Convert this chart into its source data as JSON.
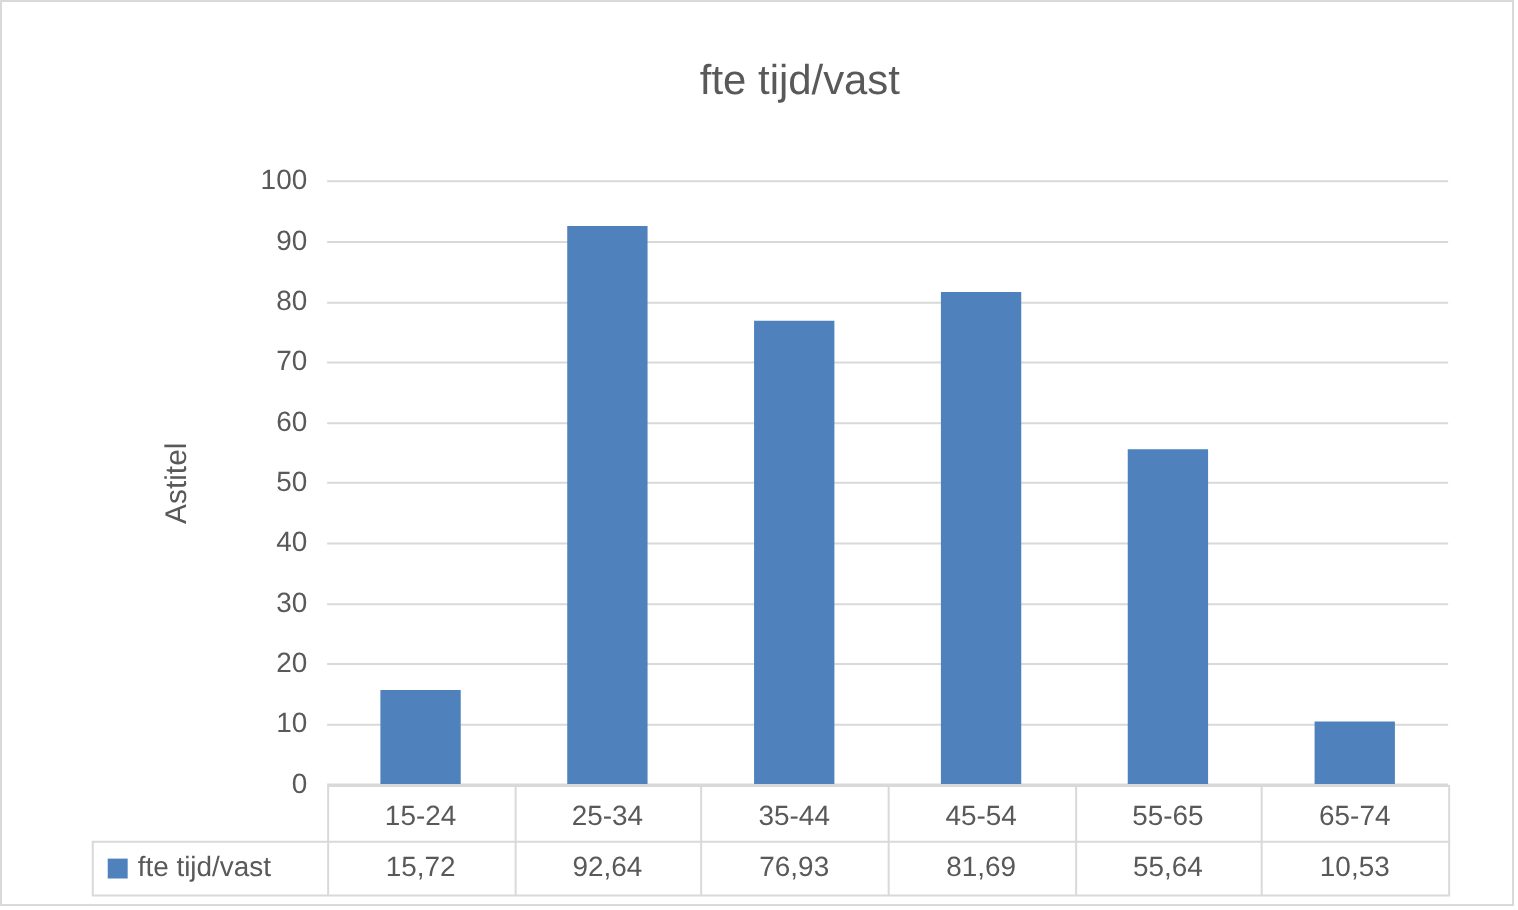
{
  "chart_data": {
    "type": "bar",
    "title": "fte tijd/vast",
    "ylabel": "Astitel",
    "categories": [
      "15-24",
      "25-34",
      "35-44",
      "45-54",
      "55-65",
      "65-74"
    ],
    "series": [
      {
        "name": "fte tijd/vast",
        "color": "#4f81bd",
        "values": [
          15.72,
          92.64,
          76.93,
          81.69,
          55.64,
          10.53
        ],
        "value_labels": [
          "15,72",
          "92,64",
          "76,93",
          "81,69",
          "55,64",
          "10,53"
        ]
      }
    ],
    "ylim": [
      0,
      100
    ],
    "yticks": [
      0,
      10,
      20,
      30,
      40,
      50,
      60,
      70,
      80,
      90,
      100
    ],
    "grid": "y",
    "legend": "bottom"
  }
}
